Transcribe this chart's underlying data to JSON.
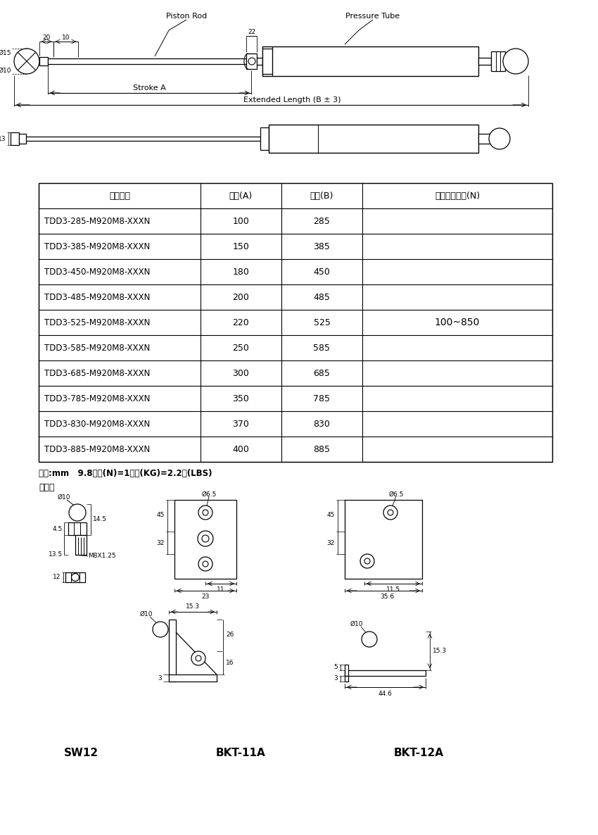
{
  "bg_color": "#ffffff",
  "table_headers": [
    "產品型號",
    "行程(A)",
    "總長(B)",
    "壓力承製範圍(N)"
  ],
  "table_rows": [
    [
      "TDD3-285-M920M8-XXXN",
      "100",
      "285"
    ],
    [
      "TDD3-385-M920M8-XXXN",
      "150",
      "385"
    ],
    [
      "TDD3-450-M920M8-XXXN",
      "180",
      "450"
    ],
    [
      "TDD3-485-M920M8-XXXN",
      "200",
      "485"
    ],
    [
      "TDD3-525-M920M8-XXXN",
      "220",
      "525"
    ],
    [
      "TDD3-585-M920M8-XXXN",
      "250",
      "585"
    ],
    [
      "TDD3-685-M920M8-XXXN",
      "300",
      "685"
    ],
    [
      "TDD3-785-M920M8-XXXN",
      "350",
      "785"
    ],
    [
      "TDD3-830-M920M8-XXXN",
      "370",
      "830"
    ],
    [
      "TDD3-885-M920M8-XXXN",
      "400",
      "885"
    ]
  ],
  "pressure_range": "100~850",
  "unit_note": "單位:mm   9.8牛蠓(N)=1公斤(KG)=2.2磅(LBS)",
  "accessory_label": "選配件",
  "sw12_label": "SW12",
  "bkt11a_label": "BKT-11A",
  "bkt12a_label": "BKT-12A",
  "line_color": "#000000",
  "text_color": "#000000",
  "figw": 8.5,
  "figh": 11.86,
  "dpi": 100
}
